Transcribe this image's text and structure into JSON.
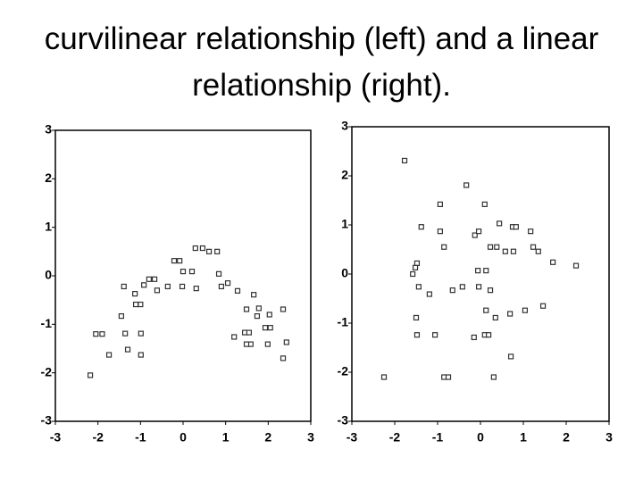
{
  "title": "curvilinear relationship (left) and a linear relationship (right).",
  "chart_data": [
    {
      "type": "scatter",
      "x": [
        -2.18,
        -2.05,
        -1.9,
        -1.74,
        -1.45,
        -1.39,
        -1.36,
        -1.3,
        -1.13,
        -1.11,
        -1.0,
        -0.99,
        -0.99,
        -0.92,
        -0.8,
        -0.67,
        -0.61,
        -0.36,
        -0.21,
        -0.08,
        -0.02,
        0,
        0.21,
        0.31,
        0.29,
        0.46,
        0.61,
        0.8,
        0.84,
        0.9,
        1.05,
        1.2,
        1.28,
        1.45,
        1.55,
        1.49,
        1.59,
        1.49,
        1.66,
        1.74,
        1.78,
        1.93,
        2.05,
        1.99,
        2.03,
        2.35,
        2.35,
        2.43
      ],
      "values": [
        -2.05,
        -1.2,
        -1.2,
        -1.63,
        -0.83,
        -0.22,
        -1.19,
        -1.52,
        -0.37,
        -0.59,
        -0.59,
        -1.19,
        -1.63,
        -0.19,
        -0.07,
        -0.07,
        -0.3,
        -0.22,
        0.31,
        0.31,
        -0.22,
        0.09,
        0.09,
        -0.26,
        0.57,
        0.57,
        0.5,
        0.5,
        0.04,
        -0.22,
        -0.15,
        -1.26,
        -0.31,
        -1.17,
        -1.17,
        -0.69,
        -1.41,
        -1.41,
        -0.39,
        -0.83,
        -0.67,
        -1.07,
        -1.07,
        -1.41,
        -0.8,
        -0.69,
        -1.7,
        -1.37
      ],
      "xlim": [
        -3,
        3
      ],
      "ylim": [
        -3,
        3
      ],
      "xticks": [
        -3,
        -2,
        -1,
        0,
        1,
        2,
        3
      ],
      "yticks": [
        -3,
        -2,
        -1,
        0,
        1,
        2,
        3
      ]
    },
    {
      "type": "scatter",
      "x": [
        -1.77,
        -0.33,
        -0.94,
        0.1,
        -1.38,
        -0.94,
        -0.13,
        -0.04,
        0.44,
        0.75,
        0.83,
        1.17,
        -0.85,
        0.23,
        0.38,
        0.58,
        0.77,
        1.23,
        1.35,
        1.69,
        2.23,
        -1.48,
        -1.52,
        -1.58,
        -0.06,
        0.13,
        -1.44,
        -1.19,
        -0.65,
        -0.42,
        -0.04,
        0.23,
        0.13,
        -1.5,
        0.35,
        0.69,
        1.04,
        1.46,
        -1.48,
        -1.06,
        -0.15,
        0.1,
        0.19,
        0.71,
        -2.25,
        -0.85,
        -0.75,
        0.31
      ],
      "values": [
        2.31,
        1.81,
        1.42,
        1.42,
        0.96,
        0.87,
        0.79,
        0.87,
        1.03,
        0.96,
        0.96,
        0.87,
        0.55,
        0.55,
        0.55,
        0.46,
        0.46,
        0.55,
        0.46,
        0.24,
        0.17,
        0.22,
        0.13,
        0,
        0.07,
        0.07,
        -0.26,
        -0.41,
        -0.33,
        -0.26,
        -0.26,
        -0.33,
        -0.74,
        -0.89,
        -0.89,
        -0.81,
        -0.74,
        -0.65,
        -1.24,
        -1.24,
        -1.29,
        -1.24,
        -1.24,
        -1.68,
        -2.1,
        -2.1,
        -2.1,
        -2.1
      ],
      "xlim": [
        -3,
        3
      ],
      "ylim": [
        -3,
        3
      ],
      "xticks": [
        -3,
        -2,
        -1,
        0,
        1,
        2,
        3
      ],
      "yticks": [
        -3,
        -2,
        -1,
        0,
        1,
        2,
        3
      ]
    }
  ]
}
